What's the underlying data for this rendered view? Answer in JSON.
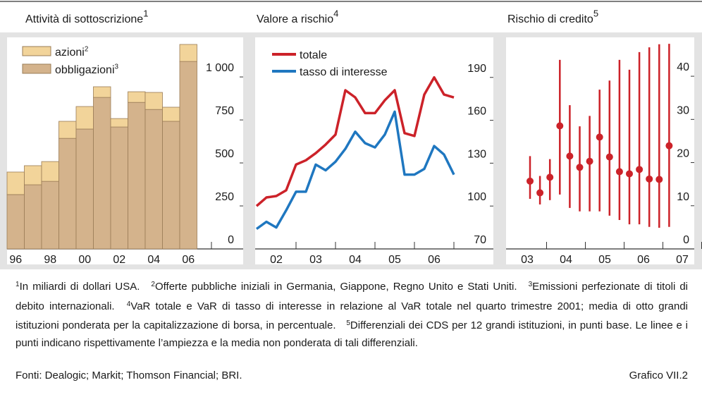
{
  "chart_data": [
    {
      "type": "stacked_bar",
      "title": "Attività di sottoscrizione",
      "title_note": "1",
      "categories": [
        "96",
        null,
        "98",
        null,
        "00",
        null,
        "02",
        null,
        "04",
        null,
        "06"
      ],
      "series": [
        {
          "name": "azioni",
          "note": "2",
          "color": "#f2d49a",
          "values": [
            131,
            111,
            115,
            99,
            131,
            62,
            49,
            62,
            99,
            82,
            99
          ]
        },
        {
          "name": "obbligazioni",
          "note": "3",
          "color": "#d4b38c",
          "values": [
            316,
            373,
            393,
            643,
            697,
            881,
            709,
            852,
            811,
            742,
            1090
          ]
        }
      ],
      "ylim": [
        0,
        1230
      ],
      "yticks": [
        0,
        250,
        500,
        750,
        {
          "value": 1000,
          "label": "1 000"
        }
      ]
    },
    {
      "type": "line",
      "title": "Valore a rischio",
      "title_note": "4",
      "xtick_labels": [
        "02",
        "03",
        "04",
        "05",
        "06"
      ],
      "series": [
        {
          "name": "totale",
          "color": "#cc2229",
          "values": [
            100,
            106,
            107,
            111,
            129,
            132,
            137,
            143,
            150,
            181,
            176,
            165,
            165,
            174,
            181,
            151,
            149,
            178,
            190,
            178,
            176
          ]
        },
        {
          "name": "tasso di interesse",
          "color": "#1f77c0",
          "values": [
            84,
            89,
            85,
            97,
            110,
            110,
            129,
            125,
            131,
            140,
            152,
            144,
            141,
            150,
            166,
            122,
            122,
            126,
            142,
            136,
            122
          ]
        }
      ],
      "ylim": [
        70,
        218
      ],
      "yticks": [
        70,
        100,
        130,
        160,
        190
      ]
    },
    {
      "type": "range",
      "title": "Rischio di credito",
      "title_note": "5",
      "xtick_labels": [
        "03",
        "04",
        "05",
        "06",
        "07"
      ],
      "color": "#cc2229",
      "values": [
        15.7,
        13.0,
        16.6,
        28.5,
        21.5,
        18.9,
        20.3,
        25.9,
        21.3,
        17.9,
        17.4,
        18.4,
        16.2,
        16.1,
        23.9
      ],
      "low": [
        11.6,
        10.3,
        11.3,
        12.6,
        9.5,
        8.7,
        8.7,
        8.7,
        7.7,
        6.7,
        5.7,
        5.7,
        5.1,
        4.9,
        5.1
      ],
      "high": [
        21.5,
        16.9,
        20.8,
        43.8,
        33.3,
        28.4,
        30.8,
        36.9,
        39.0,
        43.8,
        41.5,
        45.6,
        46.7,
        47.4,
        47.5
      ],
      "ylim": [
        0,
        49
      ],
      "yticks": [
        0,
        10,
        20,
        30,
        40
      ]
    }
  ],
  "footnotes": [
    {
      "number": "1",
      "text": "In miliardi di dollari USA."
    },
    {
      "number": "2",
      "text": "Offerte pubbliche iniziali in Germania, Giappone, Regno Unito e Stati Uniti."
    },
    {
      "number": "3",
      "text": "Emissioni perfezionate di titoli di debito internazionali."
    },
    {
      "number": "4",
      "text": "VaR totale e VaR di tasso di interesse in relazione al VaR totale nel quarto trimestre 2001; media di otto grandi istituzioni ponderata per la capitalizzazione di borsa, in percentuale."
    },
    {
      "number": "5",
      "text": "Differenziali dei CDS per 12 grandi istituzioni, in punti base. Le linee e i punti indicano rispettivamente l’ampiezza e la media non ponderata di tali differenziali."
    }
  ],
  "sources": "Fonti: Dealogic; Markit; Thomson Financial; BRI.",
  "figure_label": "Grafico VII.2"
}
